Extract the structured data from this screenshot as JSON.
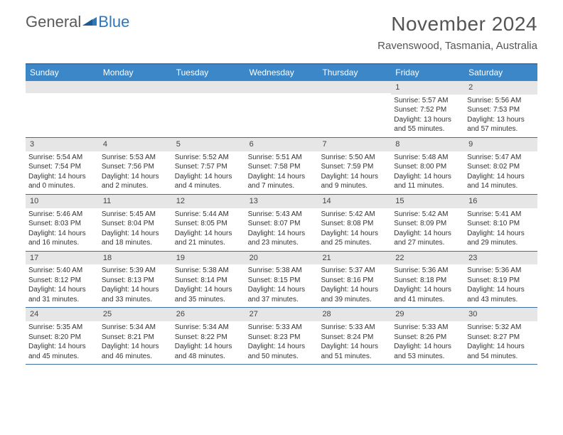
{
  "brand": {
    "part1": "General",
    "part2": "Blue"
  },
  "title": "November 2024",
  "location": "Ravenswood, Tasmania, Australia",
  "colors": {
    "header_bar": "#3b87c8",
    "border": "#3b6fa0",
    "daynum_bg": "#e6e6e6",
    "text": "#333333",
    "brand_gray": "#5a5a5a",
    "brand_blue": "#2f77ba"
  },
  "weekdays": [
    "Sunday",
    "Monday",
    "Tuesday",
    "Wednesday",
    "Thursday",
    "Friday",
    "Saturday"
  ],
  "weeks": [
    [
      {
        "n": "",
        "sunrise": "",
        "sunset": "",
        "daylight": ""
      },
      {
        "n": "",
        "sunrise": "",
        "sunset": "",
        "daylight": ""
      },
      {
        "n": "",
        "sunrise": "",
        "sunset": "",
        "daylight": ""
      },
      {
        "n": "",
        "sunrise": "",
        "sunset": "",
        "daylight": ""
      },
      {
        "n": "",
        "sunrise": "",
        "sunset": "",
        "daylight": ""
      },
      {
        "n": "1",
        "sunrise": "Sunrise: 5:57 AM",
        "sunset": "Sunset: 7:52 PM",
        "daylight": "Daylight: 13 hours and 55 minutes."
      },
      {
        "n": "2",
        "sunrise": "Sunrise: 5:56 AM",
        "sunset": "Sunset: 7:53 PM",
        "daylight": "Daylight: 13 hours and 57 minutes."
      }
    ],
    [
      {
        "n": "3",
        "sunrise": "Sunrise: 5:54 AM",
        "sunset": "Sunset: 7:54 PM",
        "daylight": "Daylight: 14 hours and 0 minutes."
      },
      {
        "n": "4",
        "sunrise": "Sunrise: 5:53 AM",
        "sunset": "Sunset: 7:56 PM",
        "daylight": "Daylight: 14 hours and 2 minutes."
      },
      {
        "n": "5",
        "sunrise": "Sunrise: 5:52 AM",
        "sunset": "Sunset: 7:57 PM",
        "daylight": "Daylight: 14 hours and 4 minutes."
      },
      {
        "n": "6",
        "sunrise": "Sunrise: 5:51 AM",
        "sunset": "Sunset: 7:58 PM",
        "daylight": "Daylight: 14 hours and 7 minutes."
      },
      {
        "n": "7",
        "sunrise": "Sunrise: 5:50 AM",
        "sunset": "Sunset: 7:59 PM",
        "daylight": "Daylight: 14 hours and 9 minutes."
      },
      {
        "n": "8",
        "sunrise": "Sunrise: 5:48 AM",
        "sunset": "Sunset: 8:00 PM",
        "daylight": "Daylight: 14 hours and 11 minutes."
      },
      {
        "n": "9",
        "sunrise": "Sunrise: 5:47 AM",
        "sunset": "Sunset: 8:02 PM",
        "daylight": "Daylight: 14 hours and 14 minutes."
      }
    ],
    [
      {
        "n": "10",
        "sunrise": "Sunrise: 5:46 AM",
        "sunset": "Sunset: 8:03 PM",
        "daylight": "Daylight: 14 hours and 16 minutes."
      },
      {
        "n": "11",
        "sunrise": "Sunrise: 5:45 AM",
        "sunset": "Sunset: 8:04 PM",
        "daylight": "Daylight: 14 hours and 18 minutes."
      },
      {
        "n": "12",
        "sunrise": "Sunrise: 5:44 AM",
        "sunset": "Sunset: 8:05 PM",
        "daylight": "Daylight: 14 hours and 21 minutes."
      },
      {
        "n": "13",
        "sunrise": "Sunrise: 5:43 AM",
        "sunset": "Sunset: 8:07 PM",
        "daylight": "Daylight: 14 hours and 23 minutes."
      },
      {
        "n": "14",
        "sunrise": "Sunrise: 5:42 AM",
        "sunset": "Sunset: 8:08 PM",
        "daylight": "Daylight: 14 hours and 25 minutes."
      },
      {
        "n": "15",
        "sunrise": "Sunrise: 5:42 AM",
        "sunset": "Sunset: 8:09 PM",
        "daylight": "Daylight: 14 hours and 27 minutes."
      },
      {
        "n": "16",
        "sunrise": "Sunrise: 5:41 AM",
        "sunset": "Sunset: 8:10 PM",
        "daylight": "Daylight: 14 hours and 29 minutes."
      }
    ],
    [
      {
        "n": "17",
        "sunrise": "Sunrise: 5:40 AM",
        "sunset": "Sunset: 8:12 PM",
        "daylight": "Daylight: 14 hours and 31 minutes."
      },
      {
        "n": "18",
        "sunrise": "Sunrise: 5:39 AM",
        "sunset": "Sunset: 8:13 PM",
        "daylight": "Daylight: 14 hours and 33 minutes."
      },
      {
        "n": "19",
        "sunrise": "Sunrise: 5:38 AM",
        "sunset": "Sunset: 8:14 PM",
        "daylight": "Daylight: 14 hours and 35 minutes."
      },
      {
        "n": "20",
        "sunrise": "Sunrise: 5:38 AM",
        "sunset": "Sunset: 8:15 PM",
        "daylight": "Daylight: 14 hours and 37 minutes."
      },
      {
        "n": "21",
        "sunrise": "Sunrise: 5:37 AM",
        "sunset": "Sunset: 8:16 PM",
        "daylight": "Daylight: 14 hours and 39 minutes."
      },
      {
        "n": "22",
        "sunrise": "Sunrise: 5:36 AM",
        "sunset": "Sunset: 8:18 PM",
        "daylight": "Daylight: 14 hours and 41 minutes."
      },
      {
        "n": "23",
        "sunrise": "Sunrise: 5:36 AM",
        "sunset": "Sunset: 8:19 PM",
        "daylight": "Daylight: 14 hours and 43 minutes."
      }
    ],
    [
      {
        "n": "24",
        "sunrise": "Sunrise: 5:35 AM",
        "sunset": "Sunset: 8:20 PM",
        "daylight": "Daylight: 14 hours and 45 minutes."
      },
      {
        "n": "25",
        "sunrise": "Sunrise: 5:34 AM",
        "sunset": "Sunset: 8:21 PM",
        "daylight": "Daylight: 14 hours and 46 minutes."
      },
      {
        "n": "26",
        "sunrise": "Sunrise: 5:34 AM",
        "sunset": "Sunset: 8:22 PM",
        "daylight": "Daylight: 14 hours and 48 minutes."
      },
      {
        "n": "27",
        "sunrise": "Sunrise: 5:33 AM",
        "sunset": "Sunset: 8:23 PM",
        "daylight": "Daylight: 14 hours and 50 minutes."
      },
      {
        "n": "28",
        "sunrise": "Sunrise: 5:33 AM",
        "sunset": "Sunset: 8:24 PM",
        "daylight": "Daylight: 14 hours and 51 minutes."
      },
      {
        "n": "29",
        "sunrise": "Sunrise: 5:33 AM",
        "sunset": "Sunset: 8:26 PM",
        "daylight": "Daylight: 14 hours and 53 minutes."
      },
      {
        "n": "30",
        "sunrise": "Sunrise: 5:32 AM",
        "sunset": "Sunset: 8:27 PM",
        "daylight": "Daylight: 14 hours and 54 minutes."
      }
    ]
  ]
}
